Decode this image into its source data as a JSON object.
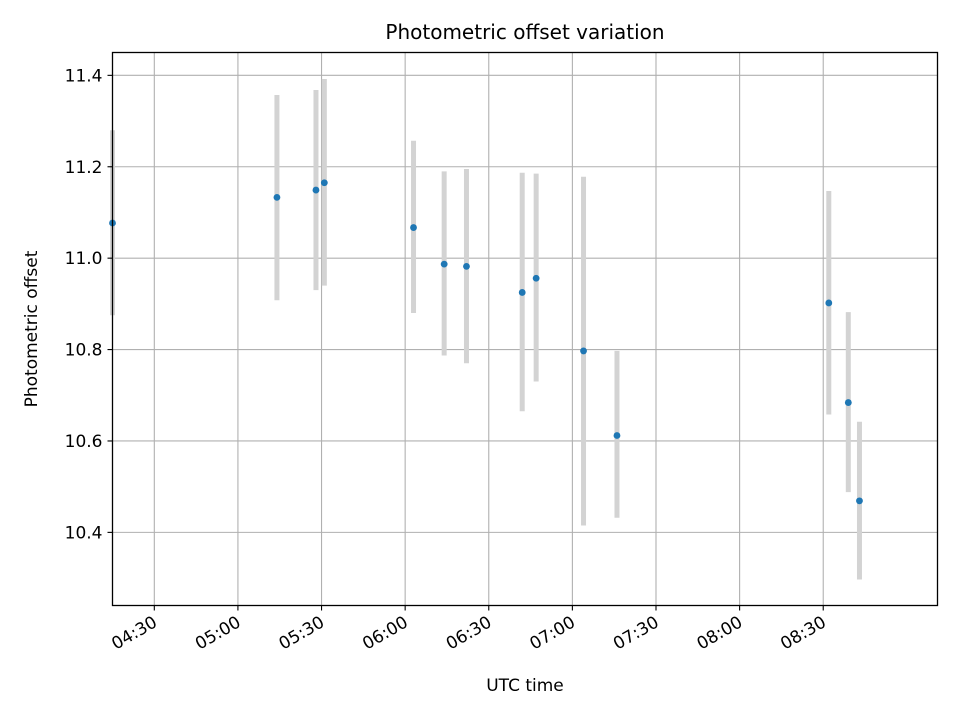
{
  "chart_data": {
    "type": "scatter",
    "title": "Photometric offset variation",
    "xlabel": "UTC time",
    "ylabel": "Photometric offset",
    "xlim": [
      "04:15",
      "09:11"
    ],
    "ylim": [
      10.24,
      11.45
    ],
    "x_ticks": [
      "04:30",
      "05:00",
      "05:30",
      "06:00",
      "06:30",
      "07:00",
      "07:30",
      "08:00",
      "08:30"
    ],
    "y_ticks": [
      10.4,
      10.6,
      10.8,
      11.0,
      11.2,
      11.4
    ],
    "y_tick_labels": [
      "10.4",
      "10.6",
      "10.8",
      "11.0",
      "11.2",
      "11.4"
    ],
    "grid": true,
    "marker_color": "#1f77b4",
    "errorbar_color": "#d3d3d3",
    "points": [
      {
        "x": "04:15",
        "y": 11.077,
        "y_low": 10.875,
        "y_high": 11.28
      },
      {
        "x": "05:14",
        "y": 11.133,
        "y_low": 10.908,
        "y_high": 11.357
      },
      {
        "x": "05:28",
        "y": 11.149,
        "y_low": 10.93,
        "y_high": 11.368
      },
      {
        "x": "05:31",
        "y": 11.165,
        "y_low": 10.94,
        "y_high": 11.392
      },
      {
        "x": "06:03",
        "y": 11.067,
        "y_low": 10.88,
        "y_high": 11.257
      },
      {
        "x": "06:14",
        "y": 10.987,
        "y_low": 10.787,
        "y_high": 11.19
      },
      {
        "x": "06:22",
        "y": 10.982,
        "y_low": 10.77,
        "y_high": 11.195
      },
      {
        "x": "06:42",
        "y": 10.925,
        "y_low": 10.665,
        "y_high": 11.187
      },
      {
        "x": "06:47",
        "y": 10.956,
        "y_low": 10.73,
        "y_high": 11.185
      },
      {
        "x": "07:04",
        "y": 10.797,
        "y_low": 10.415,
        "y_high": 11.178
      },
      {
        "x": "07:16",
        "y": 10.612,
        "y_low": 10.432,
        "y_high": 10.797
      },
      {
        "x": "08:32",
        "y": 10.902,
        "y_low": 10.658,
        "y_high": 11.147
      },
      {
        "x": "08:39",
        "y": 10.684,
        "y_low": 10.488,
        "y_high": 10.882
      },
      {
        "x": "08:43",
        "y": 10.469,
        "y_low": 10.297,
        "y_high": 10.642
      }
    ]
  }
}
